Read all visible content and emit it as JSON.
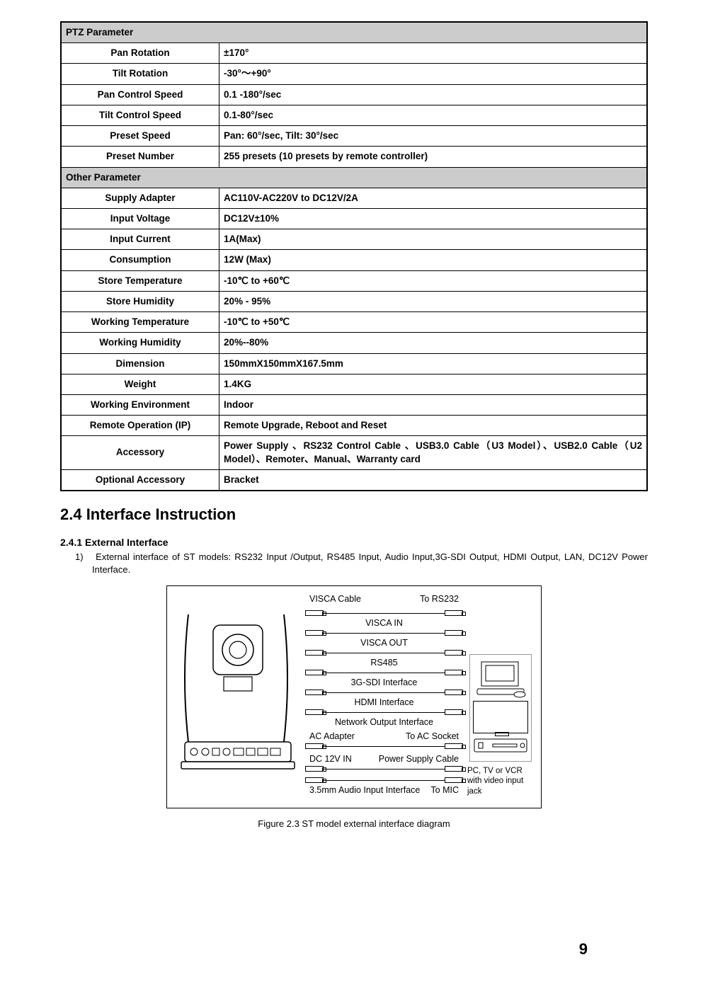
{
  "tables": {
    "ptz": {
      "header": "PTZ Parameter",
      "rows": [
        {
          "label": "Pan Rotation",
          "value": "±170°"
        },
        {
          "label": "Tilt Rotation",
          "value": "-30°～+90°"
        },
        {
          "label": "Pan Control Speed",
          "value": "0.1 -180°/sec"
        },
        {
          "label": "Tilt Control Speed",
          "value": "0.1-80°/sec"
        },
        {
          "label": "Preset Speed",
          "value": "Pan: 60°/sec, Tilt: 30°/sec"
        },
        {
          "label": "Preset Number",
          "value": "255 presets (10 presets by remote controller)"
        }
      ]
    },
    "other": {
      "header": "Other Parameter",
      "rows": [
        {
          "label": "Supply Adapter",
          "value": "AC110V-AC220V to DC12V/2A"
        },
        {
          "label": "Input Voltage",
          "value": "DC12V±10%"
        },
        {
          "label": "Input Current",
          "value": "1A(Max)"
        },
        {
          "label": "Consumption",
          "value": "12W (Max)"
        },
        {
          "label": "Store Temperature",
          "value": "-10℃ to +60℃"
        },
        {
          "label": "Store Humidity",
          "value": "20% - 95%"
        },
        {
          "label": "Working Temperature",
          "value": "-10℃ to +50℃"
        },
        {
          "label": "Working Humidity",
          "value": "20%--80%"
        },
        {
          "label": "Dimension",
          "value": "150mmX150mmX167.5mm"
        },
        {
          "label": "Weight",
          "value": "1.4KG"
        },
        {
          "label": "Working Environment",
          "value": "Indoor"
        },
        {
          "label": "Remote Operation (IP)",
          "value": "Remote Upgrade, Reboot and Reset"
        },
        {
          "label": "Accessory",
          "value": "Power Supply 、RS232 Control Cable 、USB3.0 Cable（U3 Model）、USB2.0 Cable（U2 Model）、Remoter、Manual、Warranty card"
        },
        {
          "label": "Optional Accessory",
          "value": "Bracket"
        }
      ]
    }
  },
  "section": {
    "title": "2.4 Interface Instruction",
    "subsection_title": "2.4.1 External Interface",
    "item_number": "1)",
    "item_text": "External interface of ST models: RS232 Input /Output, RS485 Input, Audio Input,3G-SDI Output, HDMI Output, LAN, DC12V Power Interface."
  },
  "diagram": {
    "top_labels": {
      "visca_cable": "VISCA Cable",
      "to_rs232": "To RS232"
    },
    "rows": [
      {
        "label": "VISCA IN"
      },
      {
        "label": "VISCA OUT"
      },
      {
        "label": "RS485"
      },
      {
        "label": "3G-SDI Interface"
      },
      {
        "label": "HDMI Interface"
      },
      {
        "label": "Network Output Interface"
      }
    ],
    "ac_adapter_row": {
      "left": "AC Adapter",
      "right": "To AC Socket"
    },
    "dc_row": {
      "left": "DC 12V IN",
      "right": "Power Supply Cable"
    },
    "audio_row": {
      "left": "3.5mm Audio Input Interface",
      "right": "To MIC"
    },
    "right_caption": "PC, TV or VCR with video input jack"
  },
  "figure_caption": "Figure 2.3 ST model external interface diagram",
  "page_number": "9"
}
